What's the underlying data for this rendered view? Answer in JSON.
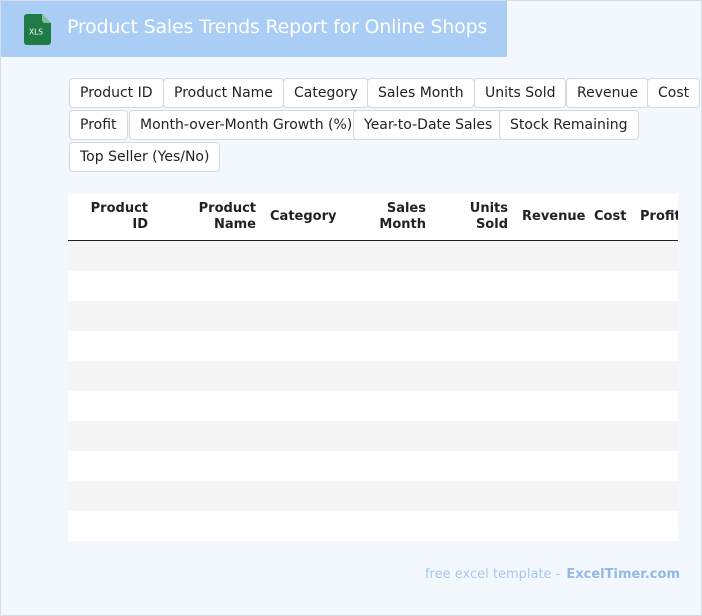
{
  "header": {
    "title": "Product Sales Trends Report for Online Shops",
    "icon": "xls-file-icon",
    "icon_label": "XLS",
    "bg_color": "#a9cdf4"
  },
  "fields": [
    "Product ID",
    "Product Name",
    "Category",
    "Sales Month",
    "Units Sold",
    "Revenue",
    "Cost",
    "Profit",
    "Month-over-Month Growth (%)",
    "Year-to-Date Sales",
    "Stock Remaining",
    "Top Seller (Yes/No)"
  ],
  "table": {
    "columns": [
      "Product\nID",
      "Product\nName",
      "Category",
      "Sales\nMonth",
      "Units\nSold",
      "Revenue",
      "Cost",
      "Profit"
    ],
    "rows": [
      [],
      [],
      [],
      [],
      [],
      [],
      [],
      [],
      [],
      []
    ]
  },
  "footer": {
    "text": "free excel template -",
    "brand": "ExcelTimer.com"
  }
}
